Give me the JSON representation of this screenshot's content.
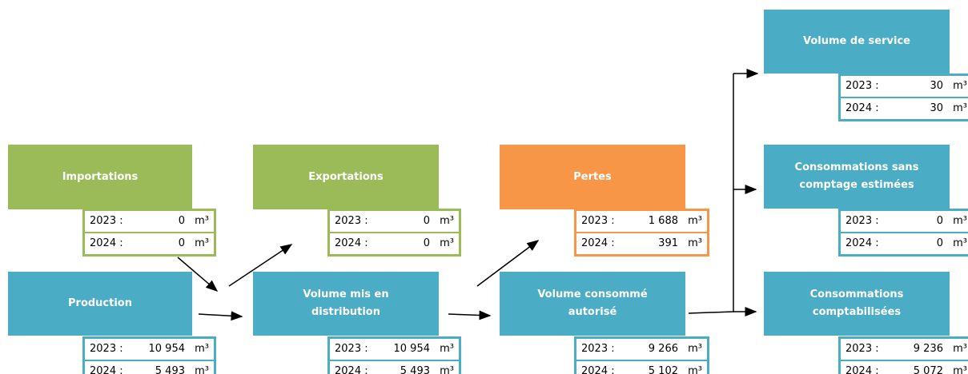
{
  "nodes": [
    {
      "title": "Importations",
      "kind": "green",
      "rows": [
        {
          "label": "2023 :",
          "value": "0",
          "unit": "m³"
        },
        {
          "label": "2024 :",
          "value": "0",
          "unit": "m³"
        }
      ]
    },
    {
      "title": "Exportations",
      "kind": "green",
      "rows": [
        {
          "label": "2023 :",
          "value": "0",
          "unit": "m³"
        },
        {
          "label": "2024 :",
          "value": "0",
          "unit": "m³"
        }
      ]
    },
    {
      "title": "Pertes",
      "kind": "orange",
      "rows": [
        {
          "label": "2023 :",
          "value": "1 688",
          "unit": "m³"
        },
        {
          "label": "2024 :",
          "value": "391",
          "unit": "m³"
        }
      ]
    },
    {
      "title": "Production",
      "kind": "blue",
      "rows": [
        {
          "label": "2023 :",
          "value": "10 954",
          "unit": "m³"
        },
        {
          "label": "2024 :",
          "value": "5 493",
          "unit": "m³"
        }
      ]
    },
    {
      "title": "Volume mis en distribution",
      "kind": "blue",
      "rows": [
        {
          "label": "2023 :",
          "value": "10 954",
          "unit": "m³"
        },
        {
          "label": "2024 :",
          "value": "5 493",
          "unit": "m³"
        }
      ]
    },
    {
      "title": "Volume consommé autorisé",
      "kind": "blue",
      "rows": [
        {
          "label": "2023 :",
          "value": "9 266",
          "unit": "m³"
        },
        {
          "label": "2024 :",
          "value": "5 102",
          "unit": "m³"
        }
      ]
    },
    {
      "title": "Volume de service",
      "kind": "blue",
      "rows": [
        {
          "label": "2023 :",
          "value": "30",
          "unit": "m³"
        },
        {
          "label": "2024 :",
          "value": "30",
          "unit": "m³"
        }
      ]
    },
    {
      "title": "Consommations sans comptage estimées",
      "kind": "blue",
      "rows": [
        {
          "label": "2023 :",
          "value": "0",
          "unit": "m³"
        },
        {
          "label": "2024 :",
          "value": "0",
          "unit": "m³"
        }
      ]
    },
    {
      "title": "Consommations comptabilisées",
      "kind": "blue",
      "rows": [
        {
          "label": "2023 :",
          "value": "9 236",
          "unit": "m³"
        },
        {
          "label": "2024 :",
          "value": "5 072",
          "unit": "m³"
        }
      ]
    }
  ]
}
